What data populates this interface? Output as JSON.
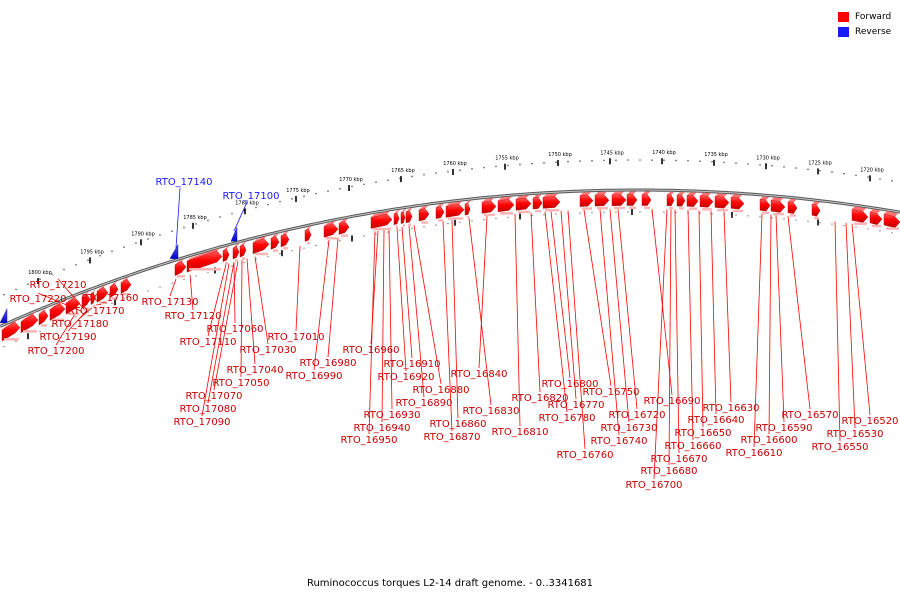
{
  "legend": {
    "forward": {
      "label": "Forward",
      "color": "#ff0000"
    },
    "reverse": {
      "label": "Reverse",
      "color": "#1a1aff"
    }
  },
  "caption": "Ruminococcus torques L2-14 draft genome. - 0..3341681",
  "ticks": [
    "1800 kbp",
    "1795 kbp",
    "1790 kbp",
    "1785 kbp",
    "1780 kbp",
    "1775 kbp",
    "1770 kbp",
    "1765 kbp",
    "1760 kbp",
    "1755 kbp",
    "1750 kbp",
    "1745 kbp",
    "1740 kbp",
    "1735 kbp",
    "1730 kbp",
    "1725 kbp",
    "1720 kbp"
  ],
  "reverse_genes": [
    "RTO_17140",
    "RTO_17100"
  ],
  "forward_genes": [
    "RTO_17210",
    "RTO_17220",
    "RTO_17160",
    "RTO_17170",
    "RTO_17180",
    "RTO_17190",
    "RTO_17200",
    "RTO_17130",
    "RTO_17120",
    "RTO_17060",
    "RTO_17110",
    "RTO_17010",
    "RTO_17030",
    "RTO_16980",
    "RTO_16990",
    "RTO_17040",
    "RTO_17050",
    "RTO_17070",
    "RTO_17080",
    "RTO_17090",
    "RTO_16960",
    "RTO_16910",
    "RTO_16920",
    "RTO_16880",
    "RTO_16890",
    "RTO_16930",
    "RTO_16940",
    "RTO_16950",
    "RTO_16840",
    "RTO_16830",
    "RTO_16860",
    "RTO_16870",
    "RTO_16800",
    "RTO_16820",
    "RTO_16810",
    "RTO_16770",
    "RTO_16780",
    "RTO_16760",
    "RTO_16750",
    "RTO_16720",
    "RTO_16730",
    "RTO_16740",
    "RTO_16690",
    "RTO_16630",
    "RTO_16640",
    "RTO_16650",
    "RTO_16660",
    "RTO_16670",
    "RTO_16680",
    "RTO_16700",
    "RTO_16570",
    "RTO_16590",
    "RTO_16600",
    "RTO_16610",
    "RTO_16520",
    "RTO_16530",
    "RTO_16550"
  ]
}
